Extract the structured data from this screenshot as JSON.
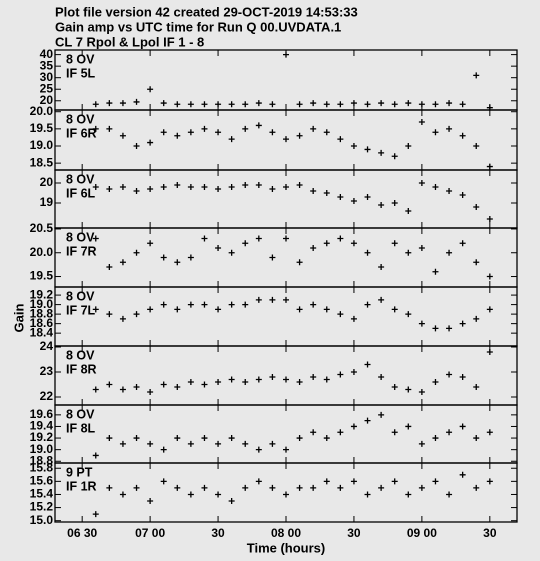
{
  "header": {
    "lines": [
      "Plot file version 42  created 29-OCT-2019 14:53:33",
      "Gain amp vs UTC time for Run Q 00.UVDATA.1",
      "CL 7  Rpol & Lpol  IF 1 - 8"
    ],
    "ylabel": "Gain"
  },
  "chart_data": [
    {
      "type": "scatter",
      "annotations": [
        "8 OV",
        "IF 5L"
      ],
      "xlim": [
        6.3,
        9.7
      ],
      "ylim": [
        16,
        42
      ],
      "yticks": [
        20,
        25,
        30,
        35,
        40
      ],
      "x": [
        6.6,
        6.7,
        6.8,
        6.9,
        7.0,
        7.1,
        7.2,
        7.3,
        7.4,
        7.5,
        7.6,
        7.7,
        7.8,
        7.9,
        8.0,
        8.1,
        8.2,
        8.3,
        8.4,
        8.5,
        8.6,
        8.7,
        8.8,
        8.9,
        9.0,
        9.1,
        9.2,
        9.3,
        9.4,
        9.5
      ],
      "values": [
        18.5,
        19,
        19,
        19.5,
        25,
        19,
        18.5,
        18.5,
        18.5,
        18.5,
        18.5,
        18.5,
        19,
        18.5,
        40,
        18.5,
        19,
        18.5,
        18.5,
        19,
        18.5,
        19,
        18.5,
        19,
        18.5,
        18.5,
        19,
        18.5,
        31,
        17
      ],
      "color": "#000000"
    },
    {
      "type": "scatter",
      "annotations": [
        "8 OV",
        "IF 6R"
      ],
      "xlim": [
        6.3,
        9.7
      ],
      "ylim": [
        18.3,
        20.05
      ],
      "yticks": [
        {
          "value": 18.5,
          "label": "18.5"
        },
        {
          "value": 19,
          "label": "19.0"
        },
        {
          "value": 19.5,
          "label": "19.5"
        },
        {
          "value": 20,
          "label": "20.0"
        }
      ],
      "x": [
        6.6,
        6.7,
        6.8,
        6.9,
        7.0,
        7.1,
        7.2,
        7.3,
        7.4,
        7.5,
        7.6,
        7.7,
        7.8,
        7.9,
        8.0,
        8.1,
        8.2,
        8.3,
        8.4,
        8.5,
        8.6,
        8.7,
        8.8,
        8.9,
        9.0,
        9.1,
        9.2,
        9.3,
        9.4,
        9.5
      ],
      "values": [
        19.5,
        19.5,
        19.3,
        19.0,
        19.1,
        19.4,
        19.3,
        19.4,
        19.5,
        19.4,
        19.2,
        19.5,
        19.6,
        19.4,
        19.2,
        19.3,
        19.5,
        19.4,
        19.2,
        19.0,
        18.9,
        18.8,
        18.7,
        19.0,
        19.7,
        19.4,
        19.5,
        19.3,
        19.0,
        18.4
      ],
      "color": "#000000"
    },
    {
      "type": "scatter",
      "annotations": [
        "8 OV",
        "IF 6L"
      ],
      "xlim": [
        6.3,
        9.7
      ],
      "ylim": [
        17.75,
        20.65
      ],
      "yticks": [
        19,
        20
      ],
      "x": [
        6.6,
        6.7,
        6.8,
        6.9,
        7.0,
        7.1,
        7.2,
        7.3,
        7.4,
        7.5,
        7.6,
        7.7,
        7.8,
        7.9,
        8.0,
        8.1,
        8.2,
        8.3,
        8.4,
        8.5,
        8.6,
        8.7,
        8.8,
        8.9,
        9.0,
        9.1,
        9.2,
        9.3,
        9.4,
        9.5
      ],
      "values": [
        19.8,
        19.7,
        19.8,
        19.6,
        19.7,
        19.8,
        19.9,
        19.8,
        19.8,
        19.7,
        19.8,
        19.9,
        19.9,
        19.7,
        19.8,
        19.9,
        19.6,
        19.5,
        19.3,
        19.1,
        19.3,
        18.9,
        19.0,
        18.6,
        20.0,
        19.8,
        19.6,
        19.4,
        18.8,
        18.2
      ],
      "color": "#000000"
    },
    {
      "type": "scatter",
      "annotations": [
        "8 OV",
        "IF 7R"
      ],
      "xlim": [
        6.3,
        9.7
      ],
      "ylim": [
        19.28,
        20.52
      ],
      "yticks": [
        19.5,
        {
          "value": 20,
          "label": "20.0"
        },
        20.5
      ],
      "x": [
        6.6,
        6.7,
        6.8,
        6.9,
        7.0,
        7.1,
        7.2,
        7.3,
        7.4,
        7.5,
        7.6,
        7.7,
        7.8,
        7.9,
        8.0,
        8.1,
        8.2,
        8.3,
        8.4,
        8.5,
        8.6,
        8.7,
        8.8,
        8.9,
        9.0,
        9.1,
        9.2,
        9.3,
        9.4,
        9.5
      ],
      "values": [
        20.3,
        19.7,
        19.8,
        20.0,
        20.2,
        19.9,
        19.8,
        19.9,
        20.3,
        20.1,
        20.0,
        20.2,
        20.3,
        19.9,
        20.3,
        19.8,
        20.1,
        20.2,
        20.3,
        20.2,
        20.0,
        19.7,
        20.2,
        20.0,
        20.1,
        19.6,
        20.0,
        20.2,
        19.8,
        19.5
      ],
      "color": "#000000"
    },
    {
      "type": "scatter",
      "annotations": [
        "8 OV",
        "IF 7L"
      ],
      "xlim": [
        6.3,
        9.7
      ],
      "ylim": [
        18.13,
        19.37
      ],
      "yticks": [
        18.4,
        18.6,
        18.8,
        {
          "value": 19,
          "label": "19.0"
        },
        19.2
      ],
      "x": [
        6.6,
        6.7,
        6.8,
        6.9,
        7.0,
        7.1,
        7.2,
        7.3,
        7.4,
        7.5,
        7.6,
        7.7,
        7.8,
        7.9,
        8.0,
        8.1,
        8.2,
        8.3,
        8.4,
        8.5,
        8.6,
        8.7,
        8.8,
        8.9,
        9.0,
        9.1,
        9.2,
        9.3,
        9.4,
        9.5
      ],
      "values": [
        18.9,
        18.8,
        18.7,
        18.8,
        18.9,
        19.0,
        18.9,
        19.0,
        19.0,
        18.9,
        19.0,
        19.0,
        19.1,
        19.1,
        19.1,
        18.9,
        19.0,
        18.9,
        18.8,
        18.7,
        19.0,
        19.1,
        18.9,
        18.8,
        18.6,
        18.5,
        18.5,
        18.6,
        18.7,
        18.9
      ],
      "color": "#000000"
    },
    {
      "type": "scatter",
      "annotations": [
        "8 OV",
        "IF 8R"
      ],
      "xlim": [
        6.3,
        9.7
      ],
      "ylim": [
        21.68,
        24.04
      ],
      "yticks": [
        22,
        23,
        24
      ],
      "x": [
        6.6,
        6.7,
        6.8,
        6.9,
        7.0,
        7.1,
        7.2,
        7.3,
        7.4,
        7.5,
        7.6,
        7.7,
        7.8,
        7.9,
        8.0,
        8.1,
        8.2,
        8.3,
        8.4,
        8.5,
        8.6,
        8.7,
        8.8,
        8.9,
        9.0,
        9.1,
        9.2,
        9.3,
        9.4,
        9.5
      ],
      "values": [
        22.3,
        22.5,
        22.3,
        22.4,
        22.2,
        22.5,
        22.4,
        22.6,
        22.5,
        22.6,
        22.7,
        22.6,
        22.7,
        22.8,
        22.7,
        22.6,
        22.8,
        22.7,
        22.9,
        23.0,
        23.3,
        22.8,
        22.4,
        22.3,
        22.2,
        22.6,
        22.9,
        22.8,
        22.4,
        23.8
      ],
      "color": "#000000"
    },
    {
      "type": "scatter",
      "annotations": [
        "8 OV",
        "IF 8L"
      ],
      "xlim": [
        6.3,
        9.7
      ],
      "ylim": [
        18.77,
        19.77
      ],
      "yticks": [
        18.8,
        {
          "value": 19,
          "label": "19.0"
        },
        19.2,
        19.4,
        19.6
      ],
      "x": [
        6.6,
        6.7,
        6.8,
        6.9,
        7.0,
        7.1,
        7.2,
        7.3,
        7.4,
        7.5,
        7.6,
        7.7,
        7.8,
        7.9,
        8.0,
        8.1,
        8.2,
        8.3,
        8.4,
        8.5,
        8.6,
        8.7,
        8.8,
        8.9,
        9.0,
        9.1,
        9.2,
        9.3,
        9.4,
        9.5
      ],
      "values": [
        18.9,
        19.2,
        19.1,
        19.2,
        19.1,
        19.0,
        19.2,
        19.1,
        19.2,
        19.1,
        19.2,
        19.1,
        19.0,
        19.1,
        19.0,
        19.2,
        19.3,
        19.2,
        19.3,
        19.4,
        19.5,
        19.6,
        19.3,
        19.4,
        19.1,
        19.2,
        19.3,
        19.4,
        19.2,
        19.3
      ],
      "color": "#000000"
    },
    {
      "type": "scatter",
      "annotations": [
        "9 PT",
        "IF 1R"
      ],
      "xlim": [
        6.3,
        9.7
      ],
      "ylim": [
        14.98,
        15.88
      ],
      "yticks": [
        {
          "value": 15,
          "label": "15.0"
        },
        15.2,
        15.4,
        15.6,
        15.8
      ],
      "x": [
        6.6,
        6.7,
        6.8,
        6.9,
        7.0,
        7.1,
        7.2,
        7.3,
        7.4,
        7.5,
        7.6,
        7.7,
        7.8,
        7.9,
        8.0,
        8.1,
        8.2,
        8.3,
        8.4,
        8.5,
        8.6,
        8.7,
        8.8,
        8.9,
        9.0,
        9.1,
        9.2,
        9.3,
        9.4,
        9.5
      ],
      "values": [
        15.1,
        15.5,
        15.4,
        15.5,
        15.3,
        15.6,
        15.5,
        15.4,
        15.5,
        15.4,
        15.3,
        15.5,
        15.6,
        15.5,
        15.4,
        15.5,
        15.5,
        15.6,
        15.5,
        15.6,
        15.4,
        15.5,
        15.6,
        15.4,
        15.5,
        15.6,
        15.4,
        15.7,
        15.5,
        15.6
      ],
      "color": "#000000",
      "xlabel": "Time (hours)",
      "xticks": [
        {
          "value": 6.5,
          "label": "06 30"
        },
        {
          "value": 7,
          "label": "07 00"
        },
        {
          "value": 7.5,
          "label": "30"
        },
        {
          "value": 8,
          "label": "08 00"
        },
        {
          "value": 8.5,
          "label": "30"
        },
        {
          "value": 9,
          "label": "09 00"
        },
        {
          "value": 9.5,
          "label": "30"
        }
      ]
    }
  ]
}
